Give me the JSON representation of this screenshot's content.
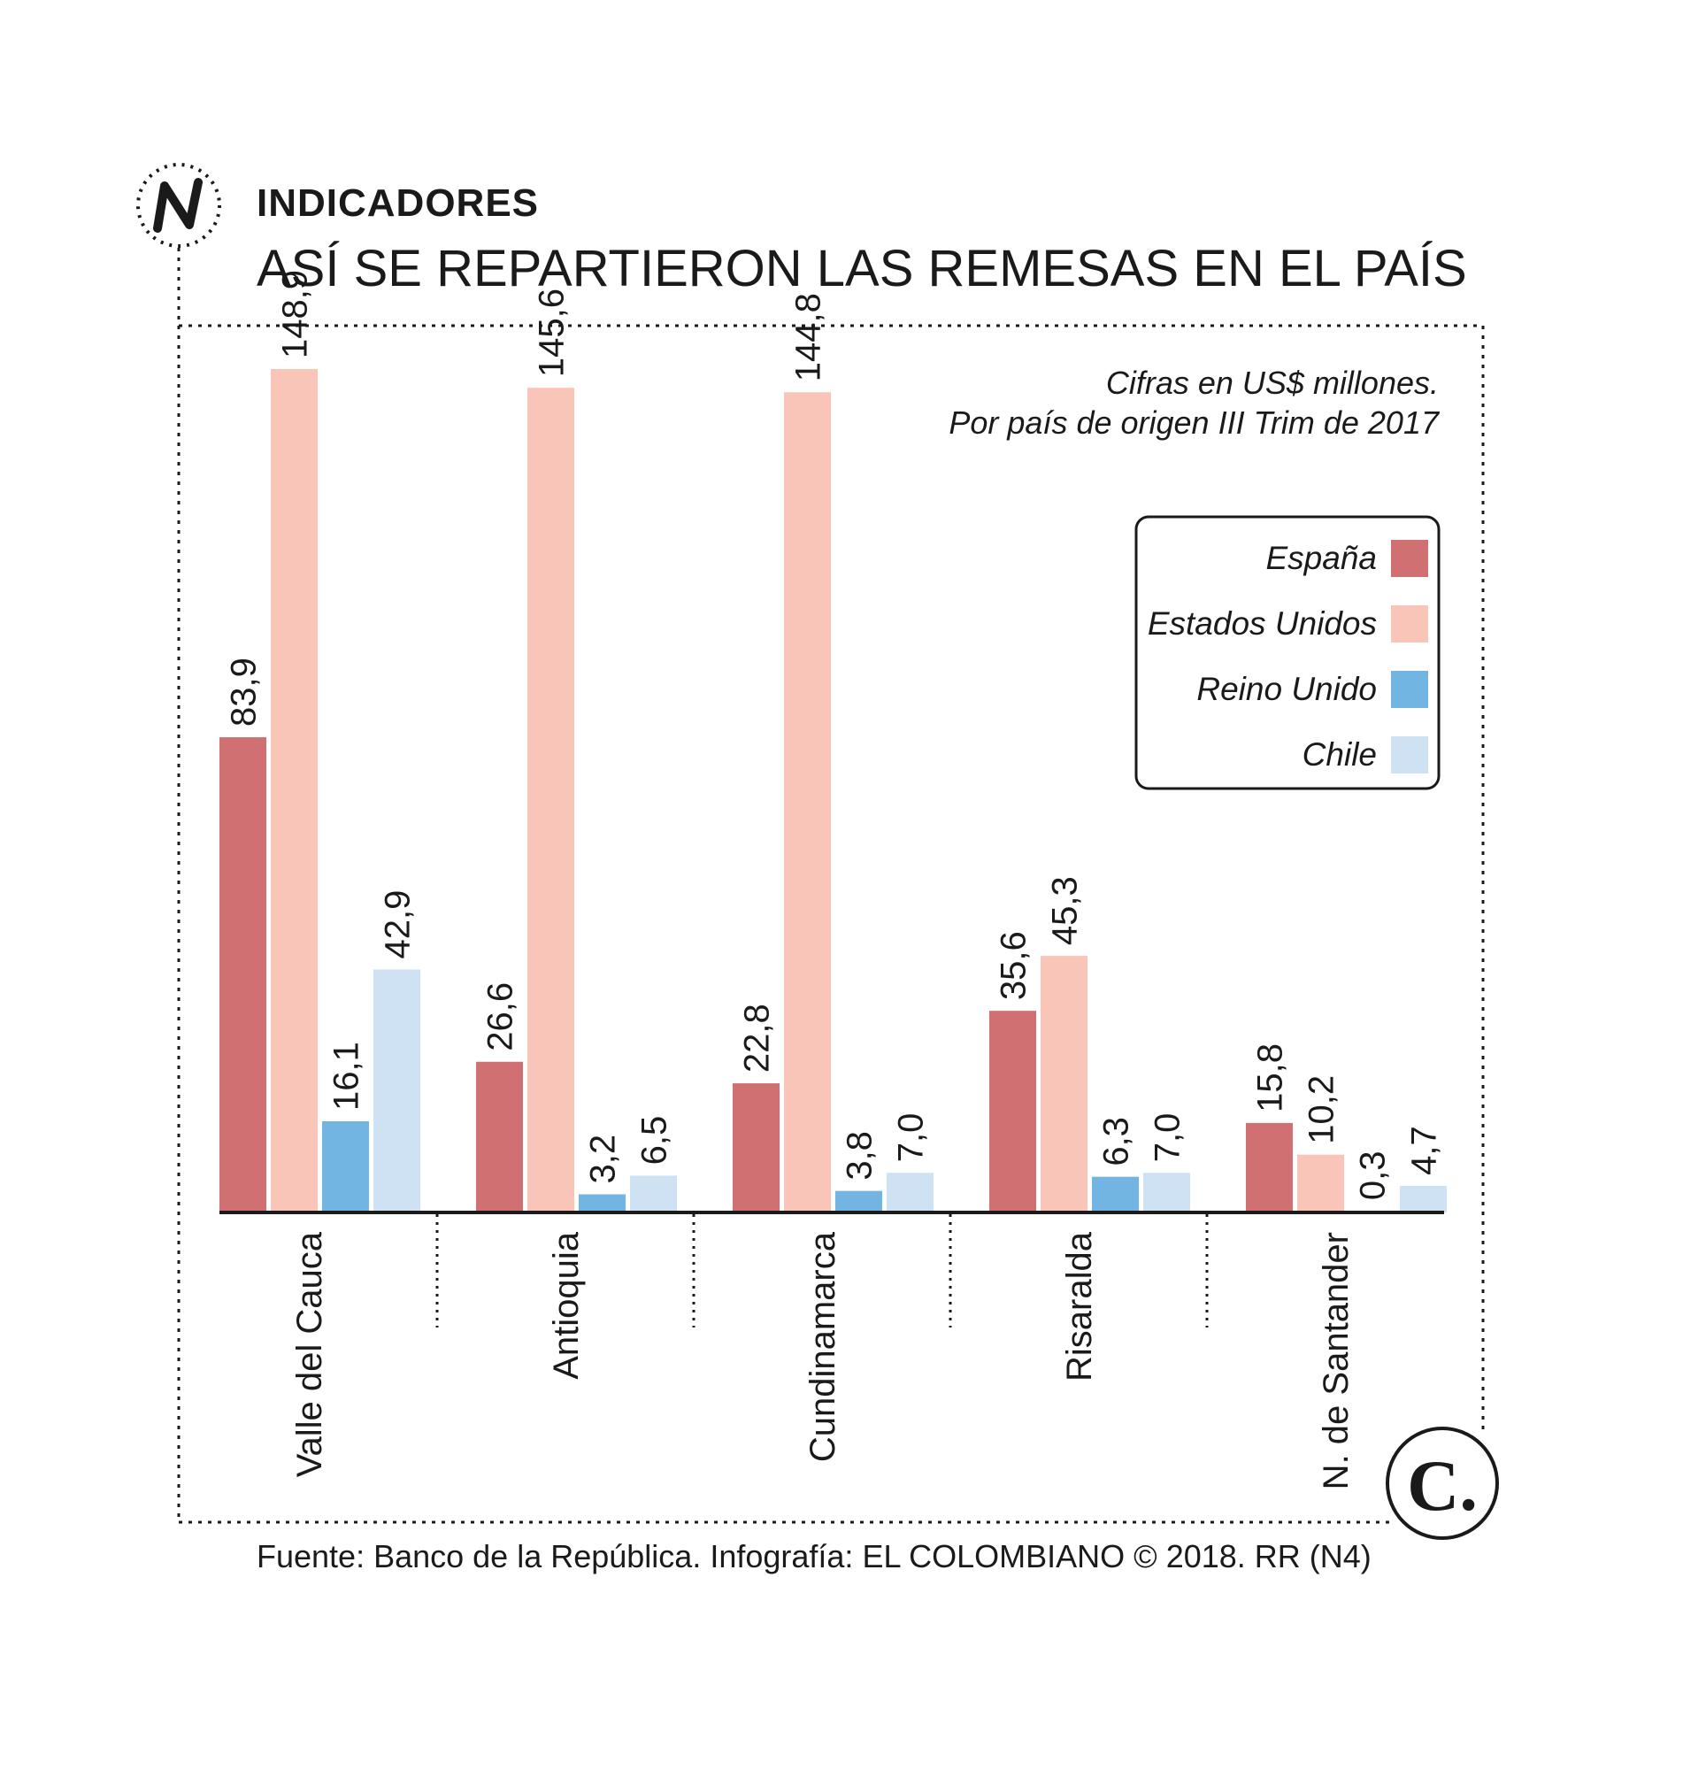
{
  "header": {
    "kicker": "INDICADORES",
    "title": "ASÍ SE REPARTIERON LAS REMESAS EN EL PAÍS",
    "logo_letter": "N"
  },
  "note": {
    "line1": "Cifras en US$ millones.",
    "line2": "Por país de origen III Trim de 2017"
  },
  "footer": {
    "source": "Fuente: Banco de la República. Infografía: EL COLOMBIANO © 2018. RR (N4)",
    "brand_letter": "C."
  },
  "icons": {
    "top_logo": "n-logo-icon",
    "bottom_logo": "el-colombiano-logo-icon"
  },
  "chart_data": {
    "type": "bar",
    "categories": [
      "Valle del Cauca",
      "Antioquia",
      "Cundinamarca",
      "Risaralda",
      "N. de Santander"
    ],
    "series": [
      {
        "name": "España",
        "color": "#d07072",
        "values": [
          83.9,
          26.6,
          22.8,
          35.6,
          15.8
        ],
        "labels": [
          "83,9",
          "26,6",
          "22,8",
          "35,6",
          "15,8"
        ]
      },
      {
        "name": "Estados Unidos",
        "color": "#f9c5b8",
        "values": [
          148.9,
          145.6,
          144.8,
          45.3,
          10.2
        ],
        "labels": [
          "148,9",
          "145,6",
          "144,8",
          "45,3",
          "10,2"
        ]
      },
      {
        "name": "Reino Unido",
        "color": "#72b5e2",
        "values": [
          16.1,
          3.2,
          3.8,
          6.3,
          0.3
        ],
        "labels": [
          "16,1",
          "3,2",
          "3,8",
          "6,3",
          "0,3"
        ]
      },
      {
        "name": "Chile",
        "color": "#cfe2f3",
        "values": [
          42.9,
          6.5,
          7.0,
          7.0,
          4.7
        ],
        "labels": [
          "42,9",
          "6,5",
          "7,0",
          "7,0",
          "4,7"
        ]
      }
    ],
    "ylim": [
      0,
      150
    ],
    "grid": false,
    "legend_position": "top-right"
  }
}
